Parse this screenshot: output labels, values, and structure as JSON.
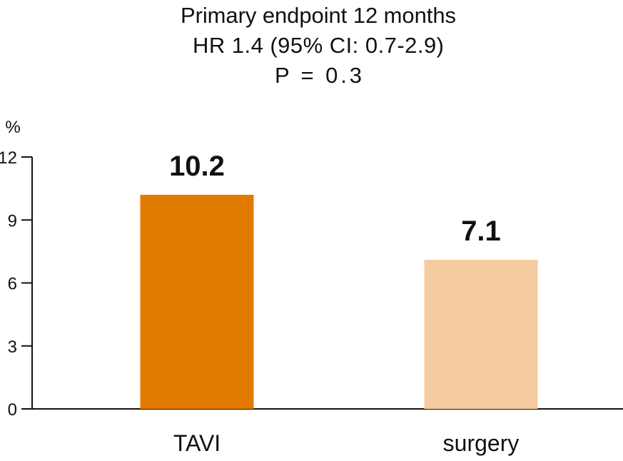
{
  "chart_data": {
    "type": "bar",
    "title": [
      "Primary endpoint 12 months",
      "HR 1.4 (95% CI: 0.7-2.9)",
      "P = 0.3"
    ],
    "ylabel": "%",
    "xlabel": "",
    "ylim": [
      0,
      12
    ],
    "yticks": [
      0,
      3,
      6,
      9,
      12
    ],
    "categories": [
      "TAVI",
      "surgery"
    ],
    "values": [
      10.2,
      7.1
    ],
    "value_labels": [
      "10.2",
      "7.1"
    ],
    "colors": [
      "#E07B00",
      "#F5CBA0"
    ],
    "grid": false
  }
}
